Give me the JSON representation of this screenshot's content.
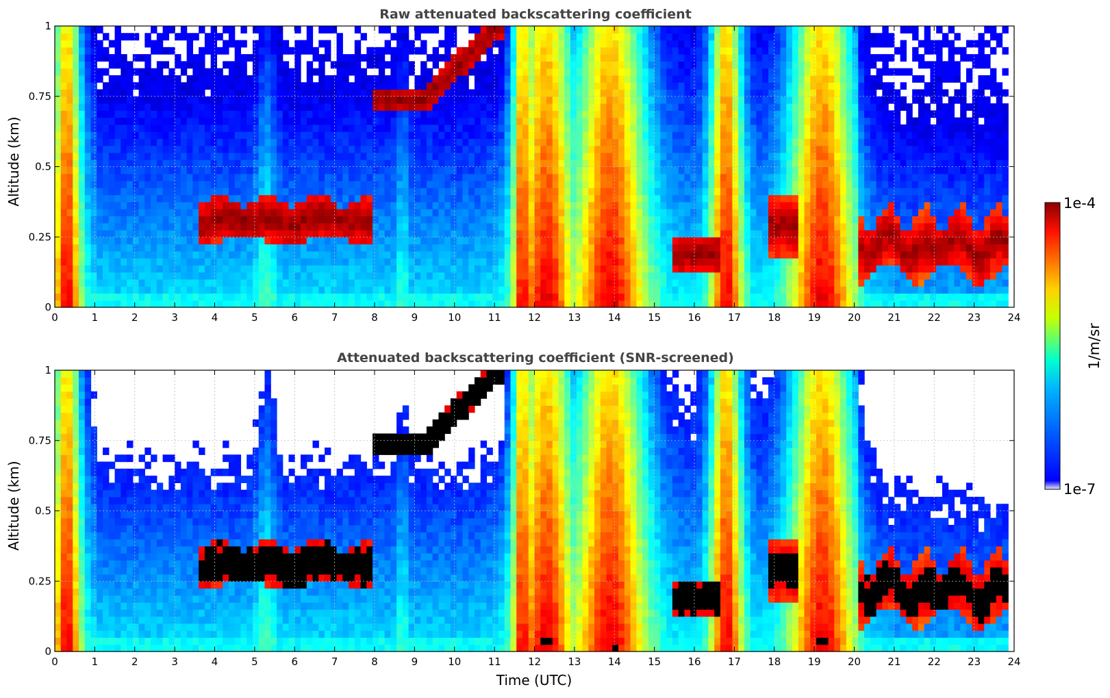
{
  "chart_data": [
    {
      "type": "heatmap",
      "title": "Raw attenuated backscattering coefficient",
      "xlabel": "",
      "ylabel": "Altitude (km)",
      "xlim": [
        0,
        24
      ],
      "ylim": [
        0,
        1
      ],
      "x_ticks": [
        "0",
        "1",
        "2",
        "3",
        "4",
        "5",
        "6",
        "7",
        "8",
        "9",
        "10",
        "11",
        "12",
        "13",
        "14",
        "15",
        "16",
        "17",
        "18",
        "19",
        "20",
        "21",
        "22",
        "23",
        "24"
      ],
      "y_ticks": [
        "0",
        "0.25",
        "0.5",
        "0.75",
        "1"
      ],
      "grid": true,
      "screened": false
    },
    {
      "type": "heatmap",
      "title": "Attenuated backscattering coefficient (SNR-screened)",
      "xlabel": "Time (UTC)",
      "ylabel": "Altitude (km)",
      "xlim": [
        0,
        24
      ],
      "ylim": [
        0,
        1
      ],
      "x_ticks": [
        "0",
        "1",
        "2",
        "3",
        "4",
        "5",
        "6",
        "7",
        "8",
        "9",
        "10",
        "11",
        "12",
        "13",
        "14",
        "15",
        "16",
        "17",
        "18",
        "19",
        "20",
        "21",
        "22",
        "23",
        "24"
      ],
      "y_ticks": [
        "0",
        "0.25",
        "0.5",
        "0.75",
        "1"
      ],
      "grid": true,
      "screened": true
    }
  ],
  "colorbar": {
    "label": "1/m/sr",
    "max_label": "1e-4",
    "min_label": "1e-7",
    "scale": "log",
    "colormap": "jet"
  }
}
